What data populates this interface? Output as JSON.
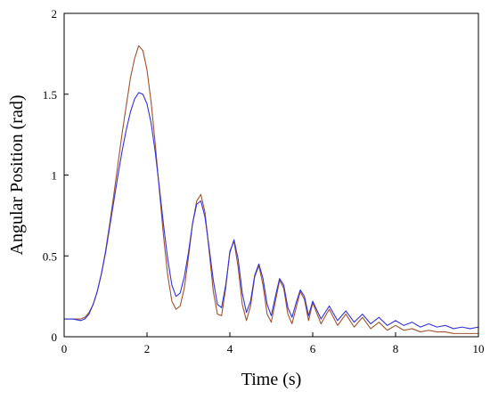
{
  "chart_data": {
    "type": "line",
    "title": "",
    "xlabel": "Time (s)",
    "ylabel": "Angular Position (rad)",
    "xlim": [
      0,
      10
    ],
    "ylim": [
      0,
      2
    ],
    "xticks": [
      0,
      2,
      4,
      6,
      8,
      10
    ],
    "yticks": [
      0,
      0.5,
      1,
      1.5,
      2
    ],
    "xtick_labels": [
      "0",
      "2",
      "4",
      "6",
      "8",
      "10"
    ],
    "ytick_labels": [
      "0",
      "0.5",
      "1",
      "1.5",
      "2"
    ],
    "grid": false,
    "legend": "none",
    "series": [
      {
        "color": "#a0522d",
        "x": [
          0,
          0.2,
          0.4,
          0.5,
          0.6,
          0.7,
          0.8,
          0.9,
          1.0,
          1.1,
          1.2,
          1.3,
          1.4,
          1.5,
          1.6,
          1.7,
          1.8,
          1.9,
          2.0,
          2.1,
          2.2,
          2.3,
          2.4,
          2.5,
          2.6,
          2.7,
          2.8,
          2.9,
          3.0,
          3.1,
          3.2,
          3.3,
          3.4,
          3.5,
          3.6,
          3.7,
          3.8,
          3.9,
          4.0,
          4.1,
          4.2,
          4.3,
          4.4,
          4.5,
          4.6,
          4.7,
          4.8,
          4.9,
          5.0,
          5.1,
          5.2,
          5.3,
          5.4,
          5.5,
          5.6,
          5.7,
          5.8,
          5.9,
          6.0,
          6.2,
          6.4,
          6.6,
          6.8,
          7.0,
          7.2,
          7.4,
          7.6,
          7.8,
          8.0,
          8.2,
          8.4,
          8.6,
          8.8,
          9.0,
          9.2,
          9.4,
          9.6,
          9.8,
          10.0
        ],
        "y": [
          0.11,
          0.11,
          0.11,
          0.12,
          0.15,
          0.2,
          0.28,
          0.39,
          0.53,
          0.7,
          0.88,
          1.07,
          1.26,
          1.43,
          1.6,
          1.72,
          1.8,
          1.77,
          1.65,
          1.45,
          1.19,
          0.9,
          0.62,
          0.38,
          0.22,
          0.17,
          0.19,
          0.3,
          0.49,
          0.7,
          0.84,
          0.88,
          0.77,
          0.53,
          0.28,
          0.14,
          0.13,
          0.3,
          0.53,
          0.59,
          0.43,
          0.2,
          0.1,
          0.19,
          0.37,
          0.44,
          0.32,
          0.14,
          0.09,
          0.22,
          0.35,
          0.3,
          0.14,
          0.08,
          0.18,
          0.28,
          0.23,
          0.1,
          0.21,
          0.08,
          0.17,
          0.07,
          0.14,
          0.06,
          0.12,
          0.05,
          0.09,
          0.04,
          0.07,
          0.04,
          0.05,
          0.03,
          0.04,
          0.03,
          0.03,
          0.02,
          0.02,
          0.02,
          0.02
        ]
      },
      {
        "color": "#3333dd",
        "x": [
          0,
          0.2,
          0.4,
          0.5,
          0.6,
          0.7,
          0.8,
          0.9,
          1.0,
          1.1,
          1.2,
          1.3,
          1.4,
          1.5,
          1.6,
          1.7,
          1.8,
          1.9,
          2.0,
          2.1,
          2.2,
          2.3,
          2.4,
          2.5,
          2.6,
          2.7,
          2.8,
          2.9,
          3.0,
          3.1,
          3.2,
          3.3,
          3.4,
          3.5,
          3.6,
          3.7,
          3.8,
          3.9,
          4.0,
          4.1,
          4.2,
          4.3,
          4.4,
          4.5,
          4.6,
          4.7,
          4.8,
          4.9,
          5.0,
          5.1,
          5.2,
          5.3,
          5.4,
          5.5,
          5.6,
          5.7,
          5.8,
          5.9,
          6.0,
          6.2,
          6.4,
          6.6,
          6.8,
          7.0,
          7.2,
          7.4,
          7.6,
          7.8,
          8.0,
          8.2,
          8.4,
          8.6,
          8.8,
          9.0,
          9.2,
          9.4,
          9.6,
          9.8,
          10.0
        ],
        "y": [
          0.11,
          0.11,
          0.1,
          0.11,
          0.14,
          0.2,
          0.28,
          0.39,
          0.52,
          0.68,
          0.84,
          1.0,
          1.15,
          1.28,
          1.39,
          1.47,
          1.51,
          1.5,
          1.44,
          1.32,
          1.14,
          0.92,
          0.69,
          0.48,
          0.32,
          0.25,
          0.27,
          0.37,
          0.52,
          0.7,
          0.82,
          0.84,
          0.74,
          0.55,
          0.35,
          0.2,
          0.18,
          0.32,
          0.52,
          0.6,
          0.48,
          0.27,
          0.15,
          0.22,
          0.38,
          0.45,
          0.36,
          0.2,
          0.13,
          0.25,
          0.36,
          0.32,
          0.18,
          0.12,
          0.21,
          0.29,
          0.25,
          0.13,
          0.22,
          0.11,
          0.19,
          0.1,
          0.16,
          0.09,
          0.14,
          0.08,
          0.12,
          0.07,
          0.1,
          0.07,
          0.09,
          0.06,
          0.08,
          0.06,
          0.07,
          0.05,
          0.06,
          0.05,
          0.06
        ]
      }
    ]
  }
}
